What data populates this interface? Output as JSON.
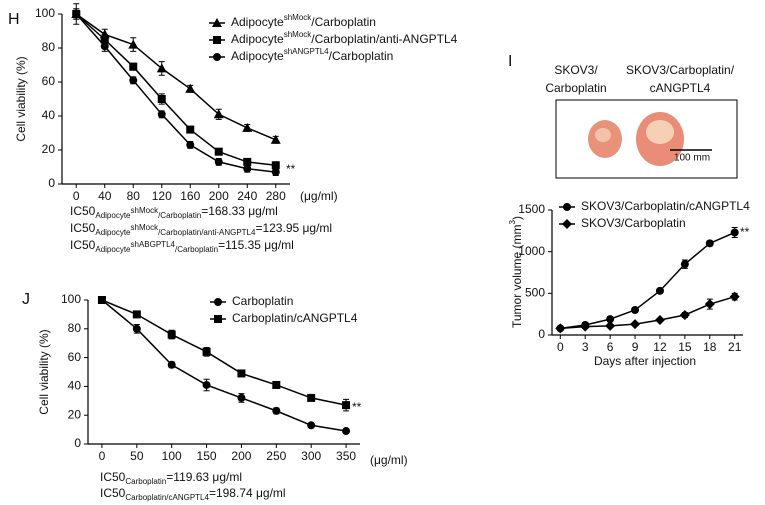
{
  "chart_data": [
    {
      "type": "line",
      "label": "H",
      "ylabel": "Cell viability (%)",
      "x_unit": "(μg/ml)",
      "annotation": "**",
      "x": [
        0,
        40,
        80,
        120,
        160,
        200,
        240,
        280
      ],
      "xticks": [
        0,
        40,
        80,
        120,
        160,
        200,
        240,
        280
      ],
      "xlim": [
        -20,
        300
      ],
      "ylim": [
        0,
        100
      ],
      "yticks": [
        0,
        20,
        40,
        60,
        80,
        100
      ],
      "series": [
        {
          "name": [
            "Adipocyte",
            "shMock",
            "/Carboplatin"
          ],
          "marker": "triangle",
          "color": "#000000",
          "values": [
            100,
            88,
            82,
            68,
            56,
            41,
            33,
            26
          ],
          "errors": [
            3,
            3,
            4,
            4,
            2,
            3,
            2,
            2
          ]
        },
        {
          "name": [
            "Adipocyte",
            "shMock",
            "/Carboplatin/anti-ANGPTL4"
          ],
          "marker": "square",
          "color": "#000000",
          "values": [
            100,
            85,
            69,
            50,
            32,
            19,
            13,
            11
          ],
          "errors": [
            3,
            3,
            2,
            3,
            2,
            1,
            2,
            2
          ]
        },
        {
          "name": [
            "Adipocyte",
            "shANGPTL4",
            "/Carboplatin"
          ],
          "marker": "circle",
          "color": "#000000",
          "values": [
            100,
            81,
            61,
            41,
            23,
            13,
            9,
            7
          ],
          "errors": [
            6,
            3,
            2,
            2,
            2,
            2,
            2,
            2
          ]
        }
      ],
      "notes": [
        [
          "IC50",
          "Adipocyte",
          "shMock",
          "/Carboplatin",
          "=168.33 μg/ml"
        ],
        [
          "IC50",
          "Adipocyte",
          "shMock",
          "/Carboplatin/anti-ANGPTL4",
          "=123.95 μg/ml"
        ],
        [
          "IC50",
          "Adipocyte",
          "shABGPTL4",
          "/Carboplatin",
          "=115.35 μg/ml"
        ]
      ]
    },
    {
      "type": "line",
      "label": "I",
      "ylabel": [
        "Tumor volume (mm",
        "3",
        ")"
      ],
      "xlabel": "Days after injection",
      "annotation": "**",
      "x": [
        0,
        3,
        6,
        9,
        12,
        15,
        18,
        21
      ],
      "xticks": [
        0,
        3,
        6,
        9,
        12,
        15,
        18,
        21
      ],
      "xlim": [
        -1,
        22
      ],
      "ylim": [
        0,
        1500
      ],
      "yticks": [
        0,
        500,
        1000,
        1500
      ],
      "series": [
        {
          "name": "SKOV3/Carboplatin/cANGPTL4",
          "marker": "circle",
          "color": "#000000",
          "values": [
            80,
            120,
            190,
            300,
            530,
            850,
            1100,
            1230
          ],
          "errors": [
            20,
            30,
            30,
            30,
            30,
            50,
            30,
            60
          ]
        },
        {
          "name": "SKOV3/Carboplatin",
          "marker": "diamond",
          "color": "#000000",
          "values": [
            80,
            100,
            110,
            130,
            180,
            240,
            370,
            460
          ],
          "errors": [
            20,
            20,
            20,
            20,
            20,
            30,
            60,
            40
          ]
        }
      ]
    },
    {
      "type": "line",
      "label": "J",
      "ylabel": "Cell viability (%)",
      "x_unit": "(μg/ml)",
      "annotation": "**",
      "x": [
        0,
        50,
        100,
        150,
        200,
        250,
        300,
        350
      ],
      "xticks": [
        0,
        50,
        100,
        150,
        200,
        250,
        300,
        350
      ],
      "xlim": [
        -20,
        370
      ],
      "ylim": [
        0,
        100
      ],
      "yticks": [
        0,
        20,
        40,
        60,
        80,
        100
      ],
      "series": [
        {
          "name": "Carboplatin",
          "marker": "circle",
          "color": "#000000",
          "values": [
            100,
            80,
            55,
            41,
            32,
            23,
            13,
            9
          ],
          "errors": [
            2,
            3,
            2,
            4,
            3,
            2,
            1,
            1
          ]
        },
        {
          "name": "Carboplatin/cANGPTL4",
          "marker": "square",
          "color": "#000000",
          "values": [
            100,
            90,
            76,
            64,
            49,
            41,
            32,
            27
          ],
          "errors": [
            2,
            1,
            3,
            3,
            2,
            1,
            2,
            4
          ]
        }
      ],
      "notes": [
        [
          "IC50",
          "Carboplatin",
          "=119.63 μg/ml"
        ],
        [
          "IC50",
          "Carboplatin/cANGPTL4",
          "=198.74 μg/ml"
        ]
      ]
    }
  ],
  "photo": {
    "labels": [
      "SKOV3/",
      "Carboplatin",
      "SKOV3/Carboplatin/",
      "cANGPTL4"
    ],
    "scale_bar": "100 mm"
  }
}
